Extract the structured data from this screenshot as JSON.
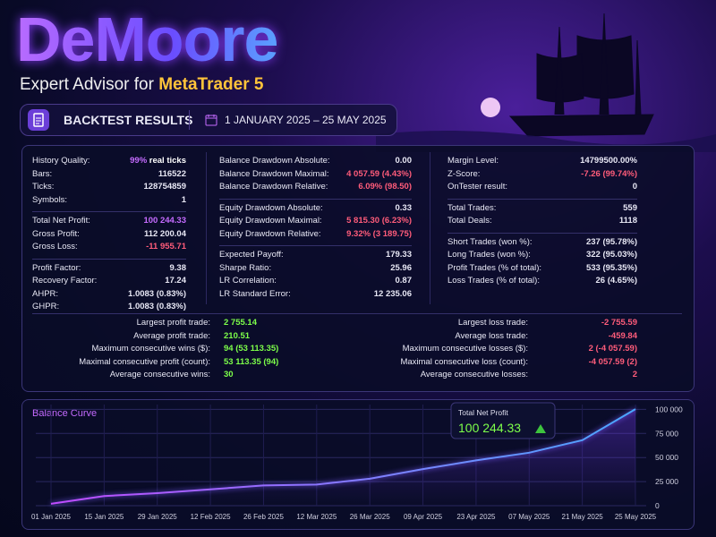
{
  "header": {
    "title": "DeMoore",
    "subtitle": "Expert Advisor for",
    "platform": "MetaTrader 5"
  },
  "banner": {
    "title": "BACKTEST RESULTS",
    "dates": "1 JANUARY 2025 – 25 MAY 2025"
  },
  "stats": {
    "columns": [
      {
        "groups": [
          {
            "rows": [
              {
                "label": "History Quality:",
                "value": "99%",
                "color": "#c56bff",
                "note": "real ticks"
              },
              {
                "label": "Bars:",
                "value": "116522"
              },
              {
                "label": "Ticks:",
                "value": "128754859"
              },
              {
                "label": "Symbols:",
                "value": "1"
              }
            ]
          },
          {
            "rows": [
              {
                "label": "Total Net Profit:",
                "value": "100 244.33",
                "color": "#c56bff"
              },
              {
                "label": "Gross Profit:",
                "value": "112 200.04"
              },
              {
                "label": "Gross Loss:",
                "value": "-11 955.71",
                "color": "#ff5c7a"
              }
            ]
          },
          {
            "rows": [
              {
                "label": "Profit Factor:",
                "value": "9.38"
              },
              {
                "label": "Recovery Factor:",
                "value": "17.24"
              },
              {
                "label": "AHPR:",
                "value": "1.0083 (0.83%)"
              },
              {
                "label": "GHPR:",
                "value": "1.0083 (0.83%)"
              }
            ]
          }
        ]
      },
      {
        "groups": [
          {
            "rows": [
              {
                "label": "Balance Drawdown Absolute:",
                "value": "0.00"
              },
              {
                "label": "Balance Drawdown Maximal:",
                "value": "4 057.59 (4.43%)",
                "color": "#ff5c7a"
              },
              {
                "label": "Balance Drawdown Relative:",
                "value": "6.09% (98.50)",
                "color": "#ff5c7a"
              }
            ]
          },
          {
            "rows": [
              {
                "label": "Equity Drawdown Absolute:",
                "value": "0.33"
              },
              {
                "label": "Equity Drawdown Maximal:",
                "value": "5 815.30 (6.23%)",
                "color": "#ff5c7a"
              },
              {
                "label": "Equity Drawdown Relative:",
                "value": "9.32% (3 189.75)",
                "color": "#ff5c7a"
              }
            ]
          },
          {
            "rows": [
              {
                "label": "Expected Payoff:",
                "value": "179.33"
              },
              {
                "label": "Sharpe Ratio:",
                "value": "25.96"
              },
              {
                "label": "LR Correlation:",
                "value": "0.87"
              },
              {
                "label": "LR Standard Error:",
                "value": "12 235.06"
              }
            ]
          }
        ]
      },
      {
        "groups": [
          {
            "rows": [
              {
                "label": "Margin Level:",
                "value": "14799500.00%"
              },
              {
                "label": "Z-Score:",
                "value": "-7.26 (99.74%)",
                "color": "#ff5c7a"
              },
              {
                "label": "OnTester result:",
                "value": "0"
              }
            ]
          },
          {
            "rows": [
              {
                "label": "Total Trades:",
                "value": "559"
              },
              {
                "label": "Total Deals:",
                "value": "1118"
              }
            ]
          },
          {
            "rows": [
              {
                "label": "Short Trades (won %):",
                "value": "237 (95.78%)"
              },
              {
                "label": "Long Trades (won %):",
                "value": "322 (95.03%)"
              },
              {
                "label": "Profit Trades (% of total):",
                "value": "533 (95.35%)"
              },
              {
                "label": "Loss Trades (% of total):",
                "value": "26 (4.65%)"
              }
            ]
          }
        ]
      }
    ],
    "trades": [
      {
        "color": "#7dff4a",
        "rows": [
          {
            "label": "Largest profit trade:",
            "value": "2 755.14"
          },
          {
            "label": "Average profit trade:",
            "value": "210.51"
          },
          {
            "label": "Maximum consecutive wins ($):",
            "value": "94 (53 113.35)"
          },
          {
            "label": "Maximal consecutive profit (count):",
            "value": "53 113.35 (94)"
          },
          {
            "label": "Average consecutive wins:",
            "value": "30"
          }
        ]
      },
      {
        "color": "#ff5c7a",
        "rows": [
          {
            "label": "Largest loss trade:",
            "value": "-2 755.59"
          },
          {
            "label": "Average loss trade:",
            "value": "-459.84"
          },
          {
            "label": "Maximum consecutive losses ($):",
            "value": "2 (-4 057.59)"
          },
          {
            "label": "Maximal consecutive loss (count):",
            "value": "-4 057.59 (2)"
          },
          {
            "label": "Average consecutive losses:",
            "value": "2"
          }
        ]
      }
    ]
  },
  "chart_data": {
    "type": "line",
    "title": "Balance Curve",
    "badge": {
      "label": "Total Net Profit",
      "value": "100 244.33"
    },
    "categories": [
      "01 Jan 2025",
      "15 Jan 2025",
      "29 Jan 2025",
      "12 Feb 2025",
      "26 Feb 2025",
      "12 Mar 2025",
      "26 Mar 2025",
      "09 Apr 2025",
      "23 Apr 2025",
      "07 May 2025",
      "21 May 2025",
      "25 May 2025"
    ],
    "values": [
      2000,
      10000,
      13000,
      17000,
      21000,
      22000,
      28000,
      38000,
      47000,
      55000,
      68000,
      100244.33
    ],
    "color": "#4aa8ff",
    "ylim": [
      0,
      105000
    ],
    "yticks": [
      0,
      {
        "value": 25000,
        "label": "25 000"
      },
      {
        "value": 50000,
        "label": "50 000"
      },
      {
        "value": 75000,
        "label": "75 000"
      },
      {
        "value": 100000,
        "label": "100 000"
      }
    ],
    "grid": true
  }
}
